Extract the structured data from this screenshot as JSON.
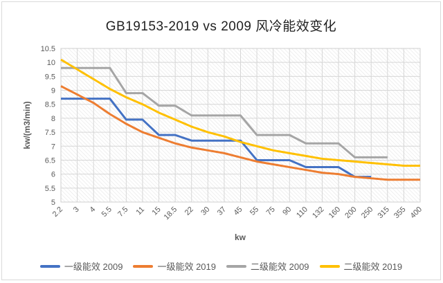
{
  "chart_data": {
    "type": "line",
    "title": "GB19153-2019 vs 2009 风冷能效变化",
    "xlabel": "kw",
    "ylabel": "kw/(m3/min)",
    "ylim": [
      5,
      10.5
    ],
    "yticks": [
      "5",
      "5.5",
      "6",
      "6.5",
      "7",
      "7.5",
      "8",
      "8.5",
      "9",
      "9.5",
      "10",
      "10.5"
    ],
    "categories": [
      "2.2",
      "3",
      "4",
      "5.5",
      "7.5",
      "11",
      "15",
      "18.5",
      "22",
      "30",
      "37",
      "45",
      "55",
      "75",
      "90",
      "110",
      "132",
      "160",
      "200",
      "250",
      "315",
      "355",
      "400"
    ],
    "grid": true,
    "legend_position": "bottom",
    "series": [
      {
        "name": "一级能效 2009",
        "color": "#4472C4",
        "values": [
          8.7,
          8.7,
          8.7,
          8.7,
          7.95,
          7.95,
          7.4,
          7.4,
          7.2,
          7.2,
          7.2,
          7.2,
          6.5,
          6.5,
          6.5,
          6.25,
          6.25,
          6.25,
          5.9,
          5.9,
          null,
          null,
          null
        ]
      },
      {
        "name": "一级能效 2019",
        "color": "#ED7D31",
        "values": [
          9.15,
          8.85,
          8.55,
          8.15,
          7.8,
          7.5,
          7.3,
          7.1,
          6.95,
          6.85,
          6.75,
          6.6,
          6.45,
          6.35,
          6.25,
          6.15,
          6.05,
          6.0,
          5.9,
          5.85,
          5.8,
          5.8,
          5.8
        ]
      },
      {
        "name": "二级能效 2009",
        "color": "#A5A5A5",
        "values": [
          9.8,
          9.8,
          9.8,
          9.8,
          8.9,
          8.9,
          8.45,
          8.45,
          8.1,
          8.1,
          8.1,
          8.1,
          7.4,
          7.4,
          7.4,
          7.1,
          7.1,
          7.1,
          6.6,
          6.6,
          6.6,
          null,
          null
        ]
      },
      {
        "name": "二级能效 2019",
        "color": "#FFC000",
        "values": [
          10.1,
          9.75,
          9.4,
          9.05,
          8.75,
          8.5,
          8.2,
          7.95,
          7.7,
          7.5,
          7.35,
          7.15,
          7.0,
          6.85,
          6.75,
          6.65,
          6.55,
          6.5,
          6.45,
          6.4,
          6.35,
          6.3,
          6.3
        ]
      }
    ]
  }
}
